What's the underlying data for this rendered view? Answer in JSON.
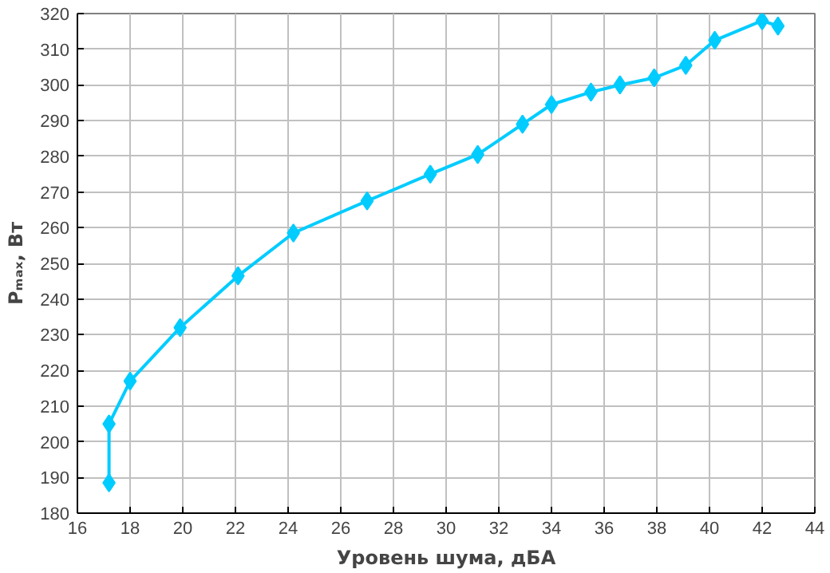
{
  "chart_data": {
    "type": "line",
    "xlabel": "Уровень шума, дБА",
    "ylabel": "Pₘₐₓ, Вт",
    "x": [
      17.2,
      17.2,
      18.0,
      19.9,
      22.1,
      24.2,
      27.0,
      29.4,
      31.2,
      32.9,
      34.0,
      35.5,
      36.6,
      37.9,
      39.1,
      40.2,
      42.0,
      42.6
    ],
    "series": [
      {
        "color": "#00ccff",
        "values": [
          188.5,
          205,
          217,
          232,
          246.5,
          258.5,
          267.5,
          275,
          280.5,
          289,
          294.5,
          298,
          300,
          302,
          305.5,
          312.5,
          318,
          316.5
        ]
      }
    ],
    "xlim": [
      16,
      44
    ],
    "xticks": [
      16,
      18,
      20,
      22,
      24,
      26,
      28,
      30,
      32,
      34,
      36,
      38,
      40,
      42,
      44
    ],
    "ylim": [
      180,
      320
    ],
    "yticks": [
      180,
      190,
      200,
      210,
      220,
      230,
      240,
      250,
      260,
      270,
      280,
      290,
      300,
      310,
      320
    ],
    "grid": true,
    "marker": "diamond",
    "line_style": "solid"
  }
}
